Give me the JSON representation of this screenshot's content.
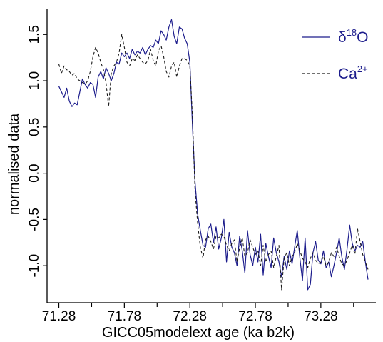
{
  "chart_data": {
    "type": "line",
    "title": "",
    "xlabel": "GICC05modelext age (ka b2k)",
    "ylabel": "normalised data",
    "xlim": [
      71.19,
      73.7
    ],
    "ylim": [
      -1.4,
      1.78
    ],
    "xticks": [
      71.28,
      71.78,
      72.28,
      72.78,
      73.28
    ],
    "xtick_labels": [
      "71.28",
      "71.78",
      "72.28",
      "72.78",
      "73.28"
    ],
    "xminor_ticks": [
      71.53,
      72.03,
      72.53,
      73.03,
      73.53
    ],
    "yticks": [
      -1.0,
      -0.5,
      0.0,
      0.5,
      1.0,
      1.5
    ],
    "ytick_labels": [
      "-1.0",
      "-0.5",
      "0.0",
      "0.5",
      "1.0",
      "1.5"
    ],
    "grid": false,
    "legend_position": "top-right",
    "legend": [
      {
        "base": "δ",
        "sup_pre": "18",
        "main": "O",
        "style": "solid"
      },
      {
        "base": "Ca",
        "sup_post": "2+",
        "style": "dashed"
      }
    ],
    "series": [
      {
        "style": "solid",
        "color": "#1c1c8c",
        "x": [
          71.28,
          71.3,
          71.32,
          71.34,
          71.36,
          71.38,
          71.4,
          71.42,
          71.44,
          71.46,
          71.48,
          71.5,
          71.52,
          71.54,
          71.56,
          71.58,
          71.6,
          71.62,
          71.64,
          71.66,
          71.68,
          71.7,
          71.72,
          71.74,
          71.76,
          71.78,
          71.8,
          71.82,
          71.84,
          71.86,
          71.88,
          71.9,
          71.92,
          71.94,
          71.96,
          71.98,
          72.0,
          72.02,
          72.04,
          72.06,
          72.08,
          72.1,
          72.12,
          72.14,
          72.16,
          72.18,
          72.2,
          72.22,
          72.24,
          72.26,
          72.28,
          72.3,
          72.32,
          72.34,
          72.36,
          72.38,
          72.4,
          72.42,
          72.44,
          72.46,
          72.48,
          72.5,
          72.52,
          72.54,
          72.56,
          72.58,
          72.6,
          72.62,
          72.64,
          72.66,
          72.68,
          72.7,
          72.72,
          72.74,
          72.76,
          72.78,
          72.8,
          72.82,
          72.84,
          72.86,
          72.88,
          72.9,
          72.92,
          72.94,
          72.96,
          72.98,
          73.0,
          73.02,
          73.04,
          73.06,
          73.08,
          73.1,
          73.12,
          73.14,
          73.16,
          73.18,
          73.2,
          73.22,
          73.24,
          73.26,
          73.28,
          73.3,
          73.32,
          73.34,
          73.36,
          73.38,
          73.4,
          73.42,
          73.44,
          73.46,
          73.48,
          73.5,
          73.52,
          73.54,
          73.56,
          73.58,
          73.6,
          73.62,
          73.64
        ],
        "y": [
          0.94,
          0.88,
          0.82,
          0.92,
          0.78,
          0.72,
          0.76,
          0.74,
          0.88,
          1.02,
          0.96,
          0.92,
          0.98,
          0.96,
          0.82,
          1.04,
          1.1,
          1.02,
          1.14,
          1.08,
          1.0,
          1.08,
          1.2,
          1.18,
          1.3,
          1.26,
          1.3,
          1.24,
          1.34,
          1.28,
          1.32,
          1.3,
          1.36,
          1.28,
          1.34,
          1.38,
          1.36,
          1.44,
          1.4,
          1.54,
          1.5,
          1.44,
          1.58,
          1.66,
          1.48,
          1.4,
          1.58,
          1.56,
          1.46,
          1.4,
          1.2,
          0.5,
          -0.1,
          -0.45,
          -0.62,
          -0.78,
          -0.8,
          -0.6,
          -0.55,
          -0.75,
          -0.58,
          -0.82,
          -0.7,
          -0.5,
          -0.96,
          -0.64,
          -0.8,
          -0.86,
          -1.0,
          -0.68,
          -0.84,
          -1.08,
          -0.62,
          -0.88,
          -1.0,
          -0.8,
          -0.96,
          -0.66,
          -1.1,
          -0.76,
          -0.9,
          -1.02,
          -0.7,
          -0.86,
          -0.96,
          -1.12,
          -0.9,
          -1.04,
          -0.84,
          -0.98,
          -0.8,
          -0.62,
          -0.92,
          -1.16,
          -0.7,
          -1.26,
          -1.2,
          -0.86,
          -0.74,
          -0.94,
          -0.98,
          -0.84,
          -1.02,
          -0.96,
          -1.12,
          -1.0,
          -0.86,
          -0.7,
          -0.9,
          -1.04,
          -0.82,
          -0.56,
          -0.76,
          -0.84,
          -0.78,
          -0.8,
          -0.74,
          -0.96,
          -1.15
        ],
        "note_x": "x spacing approximates the plotted record"
      },
      {
        "style": "dashed",
        "color": "#1a1a1a",
        "x": [
          71.28,
          71.3,
          71.32,
          71.34,
          71.36,
          71.38,
          71.4,
          71.42,
          71.44,
          71.46,
          71.48,
          71.5,
          71.52,
          71.54,
          71.56,
          71.58,
          71.6,
          71.62,
          71.64,
          71.66,
          71.68,
          71.7,
          71.72,
          71.74,
          71.76,
          71.78,
          71.8,
          71.82,
          71.84,
          71.86,
          71.88,
          71.9,
          71.92,
          71.94,
          71.96,
          71.98,
          72.0,
          72.02,
          72.04,
          72.06,
          72.08,
          72.1,
          72.12,
          72.14,
          72.16,
          72.18,
          72.2,
          72.22,
          72.24,
          72.26,
          72.28,
          72.3,
          72.32,
          72.34,
          72.36,
          72.38,
          72.4,
          72.42,
          72.44,
          72.46,
          72.48,
          72.5,
          72.52,
          72.54,
          72.56,
          72.58,
          72.6,
          72.62,
          72.64,
          72.66,
          72.68,
          72.7,
          72.72,
          72.74,
          72.76,
          72.78,
          72.8,
          72.82,
          72.84,
          72.86,
          72.88,
          72.9,
          72.92,
          72.94,
          72.96,
          72.98,
          73.0,
          73.02,
          73.04,
          73.06,
          73.08,
          73.1,
          73.12,
          73.14,
          73.16,
          73.18,
          73.2,
          73.22,
          73.24,
          73.26,
          73.28,
          73.3,
          73.32,
          73.34,
          73.36,
          73.38,
          73.4,
          73.42,
          73.44,
          73.46,
          73.48,
          73.5,
          73.52,
          73.54,
          73.56,
          73.58,
          73.6,
          73.62,
          73.64
        ],
        "y": [
          1.18,
          1.08,
          1.16,
          1.12,
          1.1,
          1.06,
          1.08,
          1.02,
          1.0,
          0.98,
          0.96,
          1.0,
          1.1,
          1.26,
          1.36,
          1.3,
          1.2,
          1.12,
          0.98,
          0.72,
          1.08,
          1.16,
          1.2,
          1.3,
          1.5,
          1.36,
          1.2,
          1.16,
          1.24,
          1.22,
          1.28,
          1.24,
          1.2,
          1.18,
          1.22,
          1.34,
          1.22,
          1.16,
          1.32,
          1.38,
          1.26,
          1.1,
          1.04,
          1.16,
          1.2,
          1.04,
          1.16,
          1.24,
          1.24,
          1.22,
          1.16,
          0.6,
          -0.2,
          -0.55,
          -0.8,
          -0.92,
          -0.72,
          -0.68,
          -0.74,
          -0.82,
          -0.68,
          -0.7,
          -0.66,
          -0.68,
          -0.78,
          -0.84,
          -0.76,
          -0.72,
          -0.96,
          -0.8,
          -0.7,
          -0.9,
          -0.86,
          -0.72,
          -0.8,
          -0.88,
          -0.84,
          -1.0,
          -0.78,
          -0.96,
          -0.88,
          -0.84,
          -1.02,
          -0.9,
          -0.78,
          -1.26,
          -0.92,
          -0.86,
          -1.0,
          -0.9,
          -0.86,
          -0.76,
          -0.84,
          -0.92,
          -0.96,
          -1.02,
          -0.92,
          -0.86,
          -0.94,
          -0.98,
          -0.96,
          -0.9,
          -1.0,
          -0.96,
          -0.86,
          -0.9,
          -0.8,
          -0.9,
          -0.98,
          -1.0,
          -0.94,
          -0.86,
          -0.78,
          -0.88,
          -0.6,
          -0.74,
          -0.88,
          -0.96,
          -1.04
        ]
      }
    ]
  }
}
